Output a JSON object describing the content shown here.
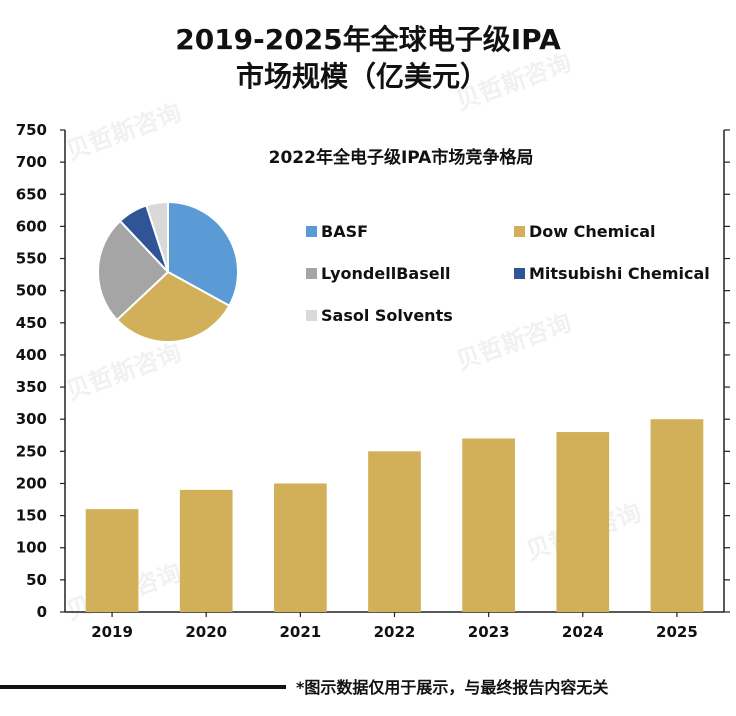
{
  "chart_data": {
    "type": "bar",
    "title_line1": "2019-2025年全球电子级IPA",
    "title_line2": "市场规模（亿美元）",
    "categories": [
      "2019",
      "2020",
      "2021",
      "2022",
      "2023",
      "2024",
      "2025"
    ],
    "values": [
      160,
      190,
      200,
      250,
      270,
      280,
      300
    ],
    "ylim": [
      0,
      750
    ],
    "yticks": [
      "0",
      "50",
      "100",
      "150",
      "200",
      "250",
      "300",
      "350",
      "400",
      "450",
      "500",
      "550",
      "600",
      "650",
      "700",
      "750"
    ],
    "bar_color": "#D2B059",
    "xlabel": "",
    "ylabel": "",
    "inset": {
      "type": "pie",
      "title": "2022年全电子级IPA市场竞争格局",
      "slices": [
        {
          "label": "BASF",
          "value": 33,
          "color": "#5B9BD5"
        },
        {
          "label": "Dow Chemical",
          "value": 30,
          "color": "#D2B059"
        },
        {
          "label": "LyondellBasell",
          "value": 25,
          "color": "#A5A5A5"
        },
        {
          "label": "Mitsubishi Chemical",
          "value": 7,
          "color": "#2F5597"
        },
        {
          "label": "Sasol Solvents",
          "value": 5,
          "color": "#D9D9D9"
        }
      ]
    }
  },
  "footnote": "*图示数据仅用于展示，与最终报告内容无关",
  "watermark": "贝哲斯咨询"
}
